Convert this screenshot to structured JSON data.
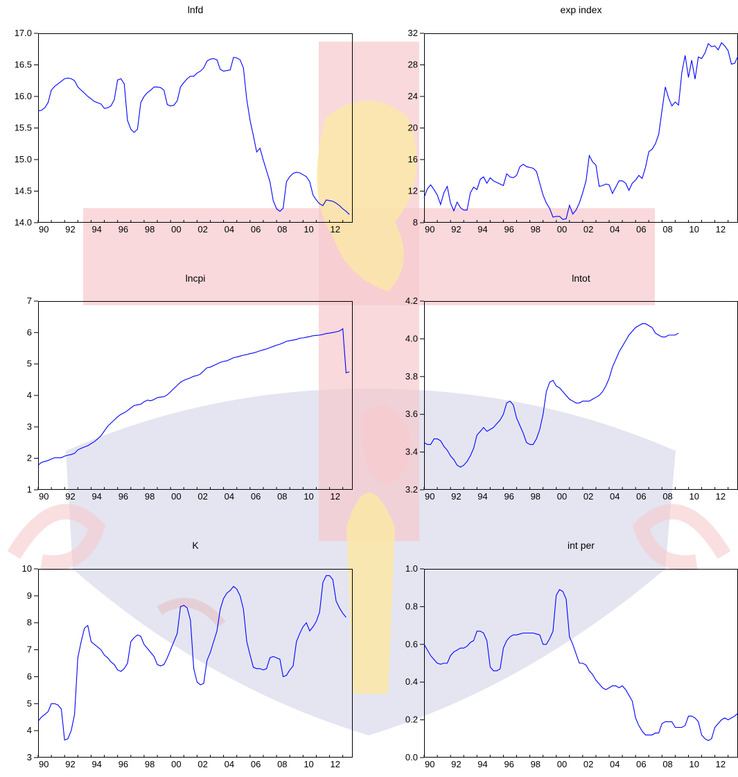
{
  "watermark": {
    "colors": {
      "red": "#f6c9cd",
      "yellow": "#fbe8a6",
      "blue": "#cdd0e6",
      "dark": "#e6c0c4"
    }
  },
  "series_color": "#0000ff",
  "chart_data": [
    {
      "type": "line",
      "title": "lnfd",
      "ylim": [
        14.0,
        17.0
      ],
      "yticks": [
        "14.0",
        "14.5",
        "15.0",
        "15.5",
        "16.0",
        "16.5",
        "17.0"
      ],
      "xticks": [
        "90",
        "92",
        "94",
        "96",
        "98",
        "00",
        "02",
        "04",
        "06",
        "08",
        "10",
        "12"
      ],
      "xrange": [
        1990,
        2013.75
      ],
      "x_start": 1990,
      "x_step": 0.25,
      "values": [
        15.77,
        15.78,
        15.82,
        15.9,
        16.1,
        16.16,
        16.2,
        16.24,
        16.28,
        16.29,
        16.28,
        16.25,
        16.15,
        16.1,
        16.05,
        16.0,
        15.96,
        15.92,
        15.9,
        15.88,
        15.81,
        15.82,
        15.85,
        15.95,
        16.26,
        16.28,
        16.2,
        15.62,
        15.48,
        15.43,
        15.48,
        15.9,
        16.0,
        16.06,
        16.1,
        16.15,
        16.15,
        16.14,
        16.1,
        15.87,
        15.85,
        15.86,
        15.93,
        16.15,
        16.22,
        16.28,
        16.32,
        16.32,
        16.37,
        16.4,
        16.45,
        16.56,
        16.59,
        16.6,
        16.58,
        16.43,
        16.4,
        16.41,
        16.42,
        16.62,
        16.61,
        16.58,
        16.45,
        15.95,
        15.62,
        15.38,
        15.12,
        15.18,
        14.99,
        14.82,
        14.65,
        14.35,
        14.22,
        14.18,
        14.23,
        14.65,
        14.73,
        14.78,
        14.8,
        14.79,
        14.76,
        14.73,
        14.65,
        14.44,
        14.36,
        14.3,
        14.27,
        14.36,
        14.35,
        14.34,
        14.31,
        14.27,
        14.22,
        14.18,
        14.13
      ]
    },
    {
      "type": "line",
      "title": "exp index",
      "ylim": [
        8,
        32
      ],
      "yticks": [
        "8",
        "12",
        "16",
        "20",
        "24",
        "28",
        "32"
      ],
      "xticks": [
        "90",
        "92",
        "94",
        "96",
        "98",
        "00",
        "02",
        "04",
        "06",
        "08",
        "10",
        "12"
      ],
      "xrange": [
        1990,
        2013.75
      ],
      "x_start": 1990,
      "x_step": 0.25,
      "values": [
        11.2,
        12.3,
        12.8,
        12.2,
        11.5,
        10.3,
        11.8,
        12.6,
        10.5,
        9.5,
        10.6,
        9.9,
        9.6,
        9.6,
        11.8,
        12.5,
        12.2,
        13.5,
        13.8,
        13.0,
        13.7,
        13.3,
        13.1,
        12.9,
        12.7,
        14.2,
        13.8,
        13.7,
        14.0,
        15.1,
        15.4,
        15.1,
        15.0,
        14.9,
        14.5,
        13.0,
        11.5,
        10.5,
        9.8,
        8.7,
        8.8,
        8.8,
        8.4,
        8.5,
        10.2,
        9.1,
        9.6,
        10.5,
        11.8,
        13.3,
        16.5,
        15.7,
        15.3,
        12.6,
        12.7,
        12.9,
        12.8,
        11.7,
        12.5,
        13.3,
        13.3,
        13.0,
        12.1,
        13.0,
        13.4,
        14.0,
        13.6,
        15.0,
        17.0,
        17.3,
        18.0,
        19.2,
        22.2,
        25.2,
        23.8,
        22.8,
        23.3,
        22.9,
        27.0,
        29.2,
        26.4,
        28.6,
        26.2,
        29.0,
        28.8,
        29.5,
        30.7,
        30.3,
        30.4,
        29.9,
        30.8,
        30.4,
        29.8,
        28.1,
        28.2,
        29.1
      ]
    },
    {
      "type": "line",
      "title": "lncpi",
      "ylim": [
        1,
        7
      ],
      "yticks": [
        "1",
        "2",
        "3",
        "4",
        "5",
        "6",
        "7"
      ],
      "xticks": [
        "90",
        "92",
        "94",
        "96",
        "98",
        "00",
        "02",
        "04",
        "06",
        "08",
        "10",
        "12"
      ],
      "xrange": [
        1990,
        2013.75
      ],
      "x_start": 1990,
      "x_step": 0.25,
      "values": [
        1.78,
        1.87,
        1.9,
        1.93,
        1.98,
        2.02,
        2.02,
        2.02,
        2.07,
        2.1,
        2.12,
        2.16,
        2.27,
        2.32,
        2.36,
        2.4,
        2.47,
        2.53,
        2.62,
        2.72,
        2.87,
        3.02,
        3.12,
        3.22,
        3.32,
        3.4,
        3.45,
        3.52,
        3.6,
        3.68,
        3.7,
        3.72,
        3.8,
        3.85,
        3.83,
        3.87,
        3.93,
        3.95,
        3.96,
        4.02,
        4.12,
        4.22,
        4.32,
        4.42,
        4.48,
        4.52,
        4.56,
        4.61,
        4.63,
        4.68,
        4.78,
        4.88,
        4.9,
        4.95,
        5.0,
        5.05,
        5.08,
        5.1,
        5.15,
        5.2,
        5.22,
        5.25,
        5.28,
        5.3,
        5.33,
        5.35,
        5.38,
        5.42,
        5.45,
        5.48,
        5.52,
        5.56,
        5.6,
        5.63,
        5.67,
        5.72,
        5.74,
        5.76,
        5.78,
        5.82,
        5.83,
        5.85,
        5.87,
        5.9,
        5.91,
        5.92,
        5.94,
        5.97,
        5.98,
        6.0,
        6.02,
        6.05,
        6.12,
        4.72,
        4.75
      ]
    },
    {
      "type": "line",
      "title": "lntot",
      "ylim": [
        3.2,
        4.2
      ],
      "yticks": [
        "3.2",
        "3.4",
        "3.6",
        "3.8",
        "4.0",
        "4.2"
      ],
      "xticks": [
        "90",
        "92",
        "94",
        "96",
        "98",
        "00",
        "02",
        "04",
        "06",
        "08",
        "10",
        "12"
      ],
      "xrange": [
        1990,
        2013.75
      ],
      "x_start": 1990,
      "x_step": 0.25,
      "values": [
        3.45,
        3.44,
        3.44,
        3.47,
        3.47,
        3.46,
        3.43,
        3.41,
        3.38,
        3.36,
        3.33,
        3.32,
        3.33,
        3.35,
        3.38,
        3.42,
        3.49,
        3.51,
        3.53,
        3.51,
        3.52,
        3.53,
        3.55,
        3.57,
        3.6,
        3.66,
        3.67,
        3.65,
        3.58,
        3.54,
        3.5,
        3.45,
        3.44,
        3.44,
        3.47,
        3.52,
        3.6,
        3.72,
        3.77,
        3.78,
        3.75,
        3.74,
        3.72,
        3.7,
        3.68,
        3.67,
        3.66,
        3.66,
        3.67,
        3.67,
        3.67,
        3.68,
        3.69,
        3.7,
        3.72,
        3.75,
        3.79,
        3.85,
        3.89,
        3.93,
        3.96,
        3.99,
        4.02,
        4.04,
        4.06,
        4.07,
        4.08,
        4.08,
        4.07,
        4.06,
        4.03,
        4.02,
        4.01,
        4.01,
        4.02,
        4.02,
        4.02,
        4.03
      ]
    },
    {
      "type": "line",
      "title": "K",
      "ylim": [
        3,
        10
      ],
      "yticks": [
        "3",
        "4",
        "5",
        "6",
        "7",
        "8",
        "9",
        "10"
      ],
      "xticks": [
        "90",
        "92",
        "94",
        "96",
        "98",
        "00",
        "02",
        "04",
        "06",
        "08",
        "10",
        "12"
      ],
      "xrange": [
        1990,
        2013.75
      ],
      "x_start": 1990,
      "x_step": 0.25,
      "values": [
        4.35,
        4.5,
        4.6,
        4.7,
        5.0,
        5.0,
        4.95,
        4.8,
        3.65,
        3.7,
        4.0,
        4.6,
        6.7,
        7.3,
        7.8,
        7.9,
        7.3,
        7.2,
        7.1,
        7.0,
        6.8,
        6.7,
        6.55,
        6.45,
        6.25,
        6.2,
        6.3,
        6.5,
        7.3,
        7.45,
        7.55,
        7.5,
        7.2,
        7.05,
        6.9,
        6.75,
        6.45,
        6.4,
        6.45,
        6.7,
        7.0,
        7.3,
        7.6,
        8.6,
        8.65,
        8.55,
        8.1,
        6.3,
        5.8,
        5.7,
        5.75,
        6.6,
        6.9,
        7.3,
        7.7,
        8.5,
        8.9,
        9.1,
        9.2,
        9.35,
        9.25,
        9.0,
        8.5,
        7.3,
        6.8,
        6.35,
        6.3,
        6.3,
        6.25,
        6.3,
        6.7,
        6.75,
        6.7,
        6.65,
        6.0,
        6.05,
        6.25,
        6.4,
        7.3,
        7.6,
        7.85,
        8.0,
        7.7,
        7.85,
        8.05,
        8.4,
        9.5,
        9.75,
        9.75,
        9.6,
        8.8,
        8.55,
        8.35,
        8.2
      ]
    },
    {
      "type": "line",
      "title": "int per",
      "ylim": [
        0.0,
        1.0
      ],
      "yticks": [
        "0.0",
        "0.2",
        "0.4",
        "0.6",
        "0.8",
        "1.0"
      ],
      "xticks": [
        "90",
        "92",
        "94",
        "96",
        "98",
        "00",
        "02",
        "04",
        "06",
        "08",
        "10",
        "12"
      ],
      "xrange": [
        1990,
        2013.75
      ],
      "x_start": 1990,
      "x_step": 0.25,
      "values": [
        0.6,
        0.57,
        0.54,
        0.52,
        0.5,
        0.495,
        0.5,
        0.5,
        0.54,
        0.56,
        0.57,
        0.58,
        0.58,
        0.59,
        0.61,
        0.62,
        0.67,
        0.67,
        0.66,
        0.62,
        0.48,
        0.46,
        0.46,
        0.47,
        0.58,
        0.62,
        0.64,
        0.65,
        0.65,
        0.655,
        0.66,
        0.66,
        0.66,
        0.66,
        0.655,
        0.65,
        0.6,
        0.6,
        0.63,
        0.67,
        0.86,
        0.89,
        0.88,
        0.84,
        0.64,
        0.6,
        0.55,
        0.5,
        0.5,
        0.49,
        0.46,
        0.44,
        0.41,
        0.39,
        0.37,
        0.36,
        0.37,
        0.38,
        0.38,
        0.37,
        0.38,
        0.36,
        0.33,
        0.3,
        0.21,
        0.17,
        0.14,
        0.12,
        0.12,
        0.12,
        0.13,
        0.13,
        0.18,
        0.19,
        0.19,
        0.19,
        0.16,
        0.16,
        0.16,
        0.17,
        0.22,
        0.22,
        0.21,
        0.19,
        0.12,
        0.1,
        0.09,
        0.1,
        0.16,
        0.18,
        0.2,
        0.21,
        0.2,
        0.21,
        0.22,
        0.235
      ]
    }
  ]
}
